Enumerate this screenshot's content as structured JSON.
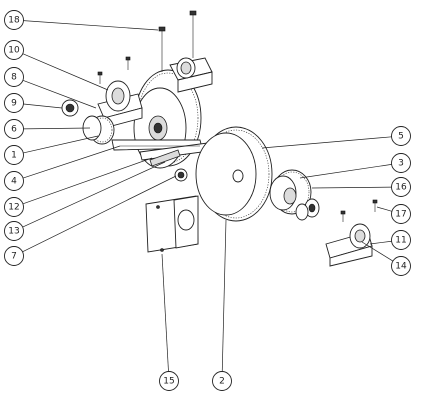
{
  "callouts": [
    {
      "label": "18"
    },
    {
      "label": "10"
    },
    {
      "label": "8"
    },
    {
      "label": "9"
    },
    {
      "label": "6"
    },
    {
      "label": "1"
    },
    {
      "label": "4"
    },
    {
      "label": "12"
    },
    {
      "label": "13"
    },
    {
      "label": "7"
    },
    {
      "label": "5"
    },
    {
      "label": "3"
    },
    {
      "label": "16"
    },
    {
      "label": "17"
    },
    {
      "label": "11"
    },
    {
      "label": "14"
    },
    {
      "label": "15"
    },
    {
      "label": "2"
    }
  ]
}
